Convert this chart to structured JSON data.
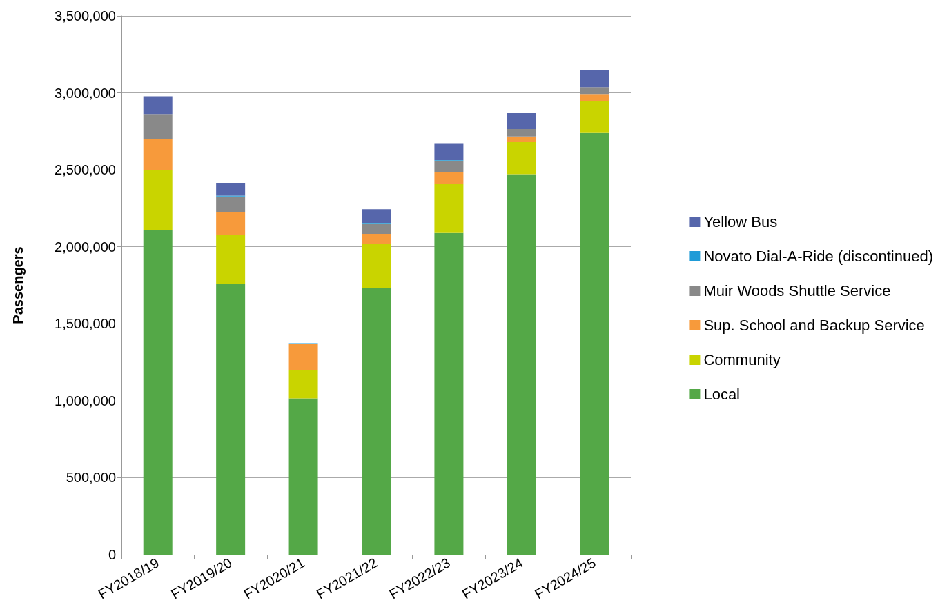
{
  "chart_data": {
    "type": "bar",
    "stacked": true,
    "ylabel": "Passengers",
    "categories": [
      "FY2018/19",
      "FY2019/20",
      "FY2020/21",
      "FY2021/22",
      "FY2022/23",
      "FY2023/24",
      "FY2024/25"
    ],
    "series": [
      {
        "name": "Local",
        "color": "#54a847",
        "values": [
          2110000,
          1757000,
          1015000,
          1734000,
          2090000,
          2472000,
          2739000
        ]
      },
      {
        "name": "Community",
        "color": "#c9d400",
        "values": [
          390000,
          322000,
          186000,
          284000,
          316000,
          208000,
          205000
        ]
      },
      {
        "name": "Sup. School and Backup Service",
        "color": "#f79a3b",
        "values": [
          200000,
          148000,
          167000,
          66000,
          80000,
          37000,
          48000
        ]
      },
      {
        "name": "Muir Woods Shuttle Service",
        "color": "#898989",
        "values": [
          162000,
          100000,
          0,
          64000,
          74000,
          48000,
          45000
        ]
      },
      {
        "name": "Novato Dial-A-Ride (discontinued)",
        "color": "#1f9bd7",
        "values": [
          0,
          6000,
          5000,
          6000,
          3000,
          0,
          0
        ]
      },
      {
        "name": "Yellow Bus",
        "color": "#5666ab",
        "values": [
          116000,
          82000,
          0,
          90000,
          106000,
          103000,
          109000
        ]
      }
    ],
    "ylim": [
      0,
      3500000
    ],
    "yticks": [
      0,
      {
        "value": 500000,
        "label": "500,000"
      },
      {
        "value": 1000000,
        "label": "1,000,000"
      },
      {
        "value": 1500000,
        "label": "1,500,000"
      },
      {
        "value": 2000000,
        "label": "2,000,000"
      },
      {
        "value": 2500000,
        "label": "2,500,000"
      },
      {
        "value": 3000000,
        "label": "3,000,000"
      },
      {
        "value": 3500000,
        "label": "3,500,000"
      }
    ],
    "grid": "y",
    "legend": "right"
  }
}
